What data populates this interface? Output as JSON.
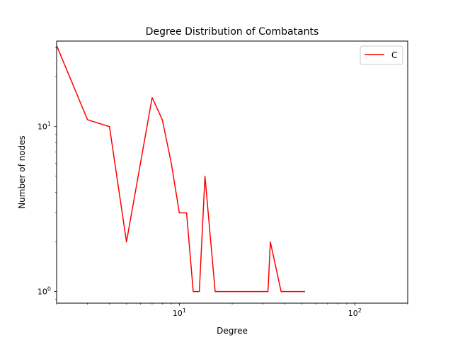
{
  "chart_data": {
    "type": "line",
    "title": "Degree Distribution of Combatants",
    "xlabel": "Degree",
    "ylabel": "Number of nodes",
    "xscale": "log",
    "yscale": "log",
    "xlim": [
      2,
      200
    ],
    "ylim": [
      0.85,
      33
    ],
    "grid": false,
    "legend_position": "top-right",
    "x_ticks": [
      {
        "value": 10,
        "base": "10",
        "exp": "1"
      },
      {
        "value": 100,
        "base": "10",
        "exp": "2"
      }
    ],
    "y_ticks": [
      {
        "value": 1,
        "base": "10",
        "exp": "0"
      },
      {
        "value": 10,
        "base": "10",
        "exp": "1"
      }
    ],
    "series": [
      {
        "name": "C",
        "color": "#ff0000",
        "x": [
          2,
          3,
          4,
          5,
          7,
          8,
          9,
          10,
          11,
          12,
          13,
          14,
          16,
          32,
          33,
          38,
          52
        ],
        "y": [
          31,
          11,
          10,
          2,
          15,
          11,
          6,
          3,
          3,
          1,
          1,
          5,
          1,
          1,
          2,
          1,
          1
        ]
      }
    ]
  }
}
